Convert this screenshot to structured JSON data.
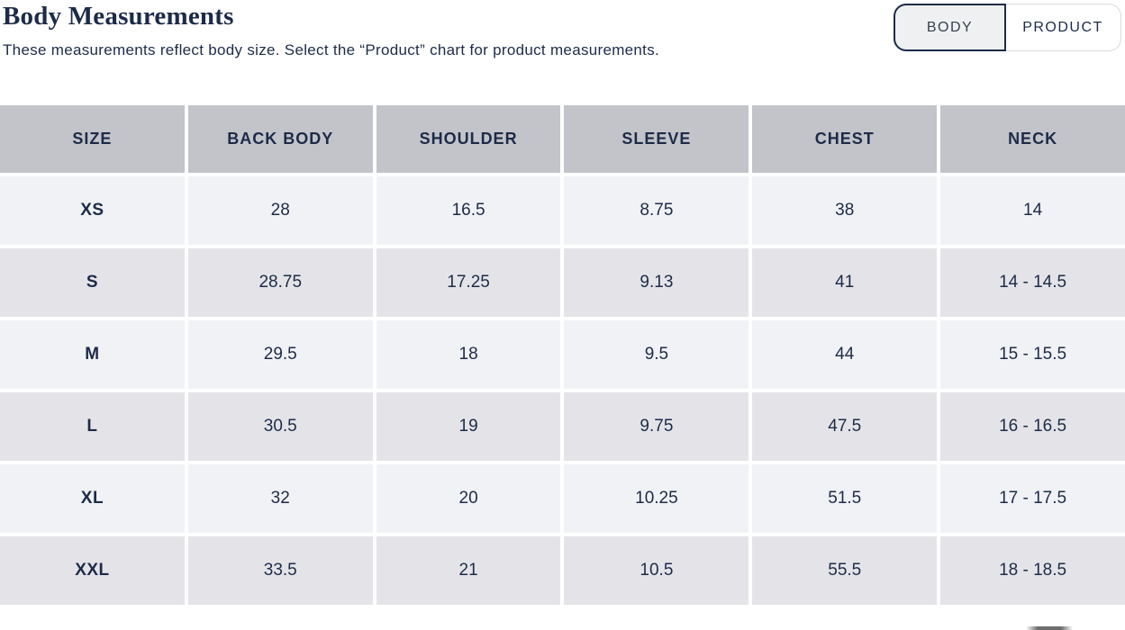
{
  "page": {
    "title": "Body Measurements",
    "description": "These measurements reflect body size. Select the “Product” chart for product measurements."
  },
  "toggle": {
    "body_label": "BODY",
    "product_label": "PRODUCT",
    "selected": "BODY"
  },
  "table": {
    "headers": [
      "SIZE",
      "BACK BODY",
      "SHOULDER",
      "SLEEVE",
      "CHEST",
      "NECK"
    ],
    "rows": [
      {
        "size": "XS",
        "values": [
          "28",
          "16.5",
          "8.75",
          "38",
          "14"
        ]
      },
      {
        "size": "S",
        "values": [
          "28.75",
          "17.25",
          "9.13",
          "41",
          "14 - 14.5"
        ]
      },
      {
        "size": "M",
        "values": [
          "29.5",
          "18",
          "9.5",
          "44",
          "15 - 15.5"
        ]
      },
      {
        "size": "L",
        "values": [
          "30.5",
          "19",
          "9.75",
          "47.5",
          "16 - 16.5"
        ]
      },
      {
        "size": "XL",
        "values": [
          "32",
          "20",
          "10.25",
          "51.5",
          "17 - 17.5"
        ]
      },
      {
        "size": "XXL",
        "values": [
          "33.5",
          "21",
          "10.5",
          "55.5",
          "18 - 18.5"
        ]
      }
    ]
  },
  "colors": {
    "accent_navy": "#1d2b49",
    "header_bg": "#c3c4c9",
    "row_light": "#f1f2f5",
    "row_dark": "#e4e4e8",
    "toggle_selected_bg": "#eef0f1",
    "toggle_selected_border": "#1d2b49",
    "toggle_unselected_border": "#d8dadc"
  }
}
